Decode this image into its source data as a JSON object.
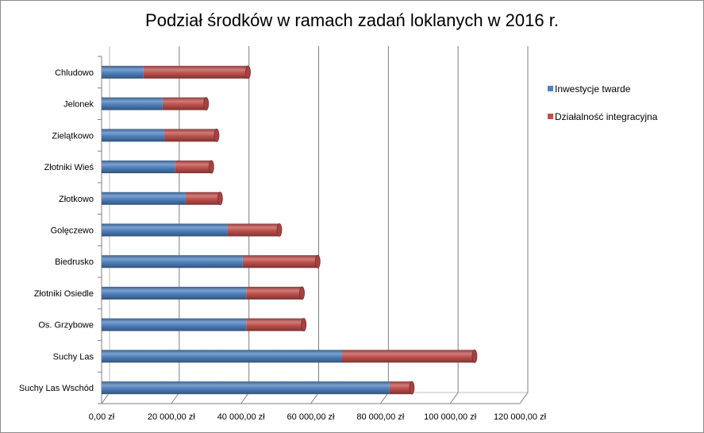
{
  "chart_data": {
    "type": "bar",
    "orientation": "horizontal",
    "stacked": true,
    "style": "3d-cylinder",
    "title": "Podział środków w ramach zadań loklanych w 2016 r.",
    "categories": [
      "Chludowo",
      "Jelonek",
      "Zielątkowo",
      "Złotniki Wieś",
      "Złotkowo",
      "Golęczewo",
      "Biedrusko",
      "Złotniki Osiedle",
      "Os. Grzybowe",
      "Suchy Las",
      "Suchy Las Wschód"
    ],
    "series": [
      {
        "name": "Inwestycje twarde",
        "color": "#4f81bd",
        "values": [
          12000,
          17500,
          18000,
          21000,
          24000,
          36000,
          40500,
          41500,
          41500,
          69000,
          82500
        ]
      },
      {
        "name": "Działalność integracyjna",
        "color": "#c0504d",
        "values": [
          30000,
          12500,
          15000,
          10500,
          10000,
          15000,
          21500,
          16000,
          16500,
          38000,
          6500
        ]
      }
    ],
    "xlim": [
      0,
      120000
    ],
    "x_ticks": [
      0,
      20000,
      40000,
      60000,
      80000,
      100000,
      120000
    ],
    "x_tick_labels": [
      "0,00 zł",
      "20 000,00 zł",
      "40 000,00 zł",
      "60 000,00 zł",
      "80 000,00 zł",
      "100 000,00 zł",
      "120 000,00 zł"
    ],
    "grid": true,
    "legend_position": "right"
  }
}
